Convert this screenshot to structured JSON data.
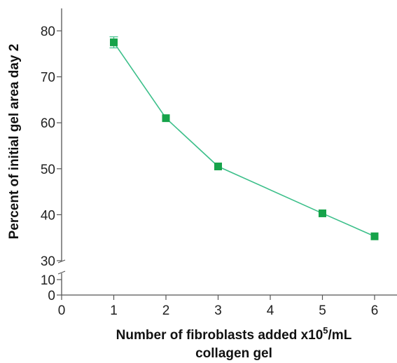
{
  "chart_data": {
    "type": "line",
    "title": "",
    "xlabel_main": "Number of fibroblasts added x10",
    "xlabel_sup": "5",
    "xlabel_rest": "/mL",
    "xlabel_line2": "collagen gel",
    "ylabel": "Percent of initial gel area day 2",
    "x_ticks": [
      "0",
      "1",
      "2",
      "3",
      "4",
      "5",
      "6"
    ],
    "x_tick_values": [
      0,
      1,
      2,
      3,
      4,
      5,
      6
    ],
    "xlim": [
      0,
      6.5
    ],
    "y_ticks_upper": [
      "80",
      "70",
      "60",
      "50",
      "40",
      "30"
    ],
    "y_tick_values_upper": [
      80,
      70,
      60,
      50,
      40,
      30
    ],
    "ylim_upper": [
      30,
      85
    ],
    "y_ticks_lower": [
      "10",
      "0"
    ],
    "y_tick_values_lower": [
      10,
      0
    ],
    "ylim_lower": [
      0,
      12
    ],
    "axis_break": true,
    "grid": false,
    "series": [
      {
        "x": [
          1,
          2,
          3,
          5,
          6
        ],
        "y": [
          77.5,
          61,
          50.5,
          40.3,
          35.3
        ],
        "error": [
          1.2,
          0,
          0,
          0,
          0
        ],
        "line_color": "#3cbf8a",
        "marker_color": "#16a34a",
        "marker": "square"
      }
    ]
  }
}
